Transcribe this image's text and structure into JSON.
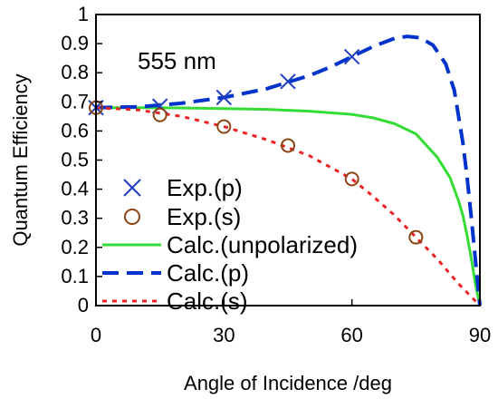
{
  "chart_data": {
    "type": "line",
    "title": "",
    "xlabel": "Angle of Incidence /deg",
    "ylabel": "Quantum Efficiency",
    "xlim": [
      0,
      90
    ],
    "ylim": [
      0,
      1
    ],
    "x_ticks": [
      "0",
      "30",
      "60",
      "90"
    ],
    "y_ticks": [
      "0",
      "0.1",
      "0.2",
      "0.3",
      "0.4",
      "0.5",
      "0.6",
      "0.7",
      "0.8",
      "0.9",
      "1"
    ],
    "grid": false,
    "legend_position": "bottom-left",
    "annotation": "555 nm",
    "series": [
      {
        "name": "Exp.(p)",
        "kind": "scatter",
        "marker": "x",
        "color": "#1f3fbf",
        "x": [
          0,
          15,
          30,
          45,
          60
        ],
        "y": [
          0.68,
          0.685,
          0.715,
          0.77,
          0.855
        ]
      },
      {
        "name": "Exp.(s)",
        "kind": "scatter",
        "marker": "circle",
        "color": "#8b4513",
        "x": [
          0,
          15,
          30,
          45,
          60,
          75
        ],
        "y": [
          0.68,
          0.655,
          0.615,
          0.55,
          0.435,
          0.235
        ]
      },
      {
        "name": "Calc.(unpolarized)",
        "kind": "line",
        "dash": "solid",
        "color": "#33dd33",
        "x": [
          0,
          10,
          20,
          30,
          40,
          50,
          60,
          65,
          70,
          75,
          80,
          83,
          85,
          86,
          87,
          88,
          89,
          90
        ],
        "y": [
          0.68,
          0.68,
          0.679,
          0.677,
          0.674,
          0.668,
          0.657,
          0.645,
          0.625,
          0.59,
          0.51,
          0.44,
          0.36,
          0.31,
          0.24,
          0.16,
          0.07,
          0.0
        ]
      },
      {
        "name": "Calc.(p)",
        "kind": "line",
        "dash": "long-dash",
        "color": "#0033cc",
        "x": [
          0,
          10,
          20,
          30,
          40,
          50,
          55,
          60,
          65,
          70,
          73,
          76,
          79,
          82,
          84,
          86,
          87,
          88,
          89,
          90
        ],
        "y": [
          0.68,
          0.683,
          0.695,
          0.715,
          0.745,
          0.79,
          0.82,
          0.855,
          0.89,
          0.918,
          0.925,
          0.92,
          0.895,
          0.83,
          0.74,
          0.56,
          0.44,
          0.3,
          0.15,
          0.0
        ]
      },
      {
        "name": "Calc.(s)",
        "kind": "line",
        "dash": "dotted",
        "color": "#ee2222",
        "x": [
          0,
          10,
          20,
          30,
          40,
          50,
          60,
          65,
          70,
          75,
          80,
          85,
          88,
          90
        ],
        "y": [
          0.68,
          0.672,
          0.65,
          0.615,
          0.57,
          0.515,
          0.435,
          0.375,
          0.31,
          0.235,
          0.16,
          0.075,
          0.03,
          0.0
        ]
      }
    ]
  }
}
